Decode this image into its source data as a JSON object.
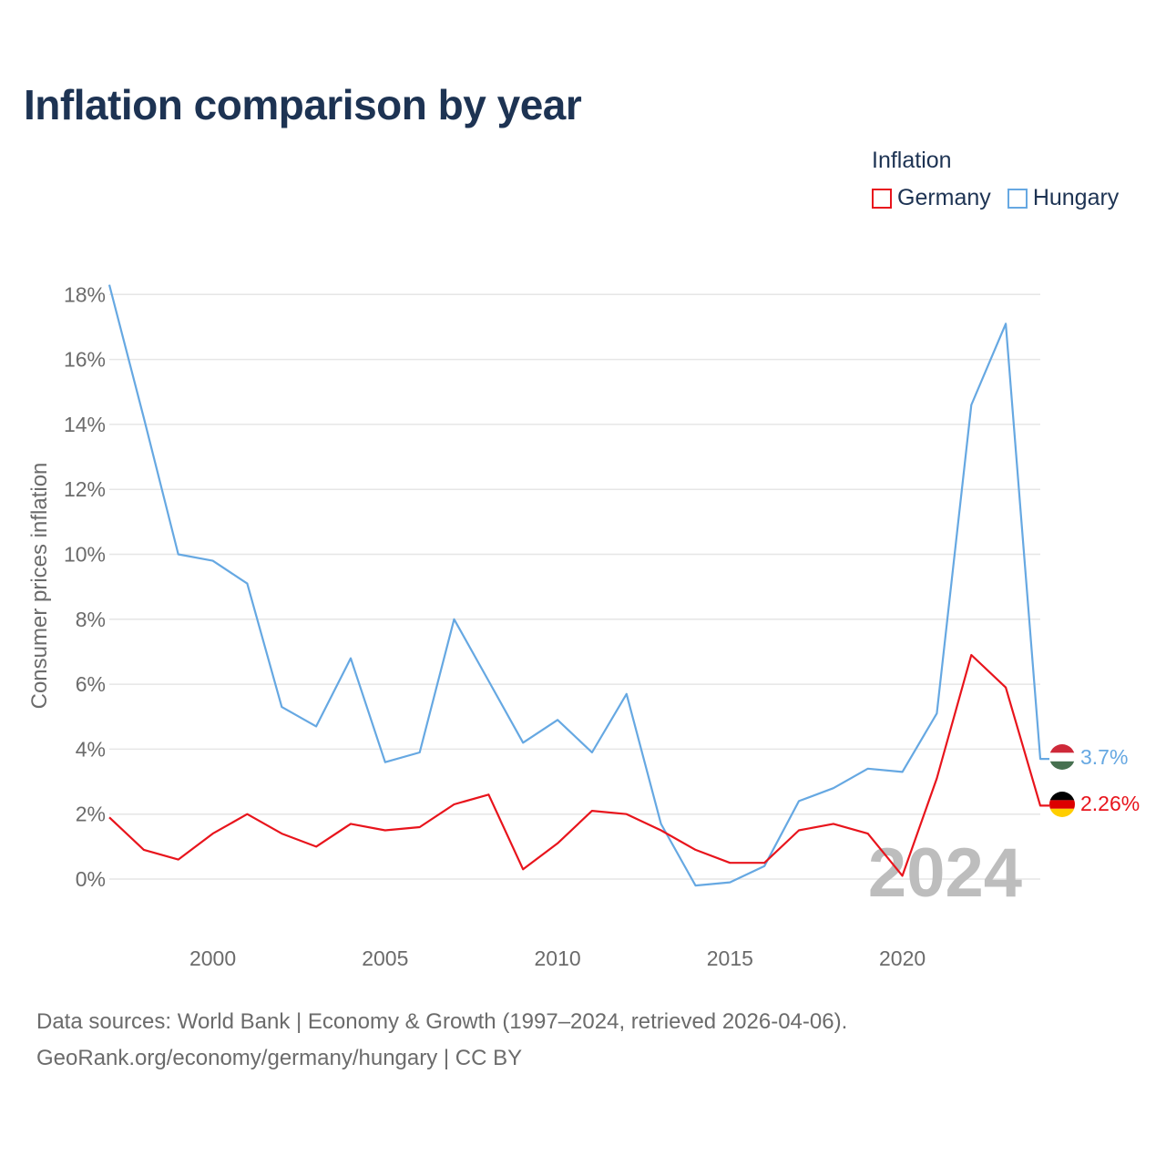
{
  "title": "Inflation comparison by year",
  "legend": {
    "title": "Inflation",
    "items": [
      {
        "name": "Germany",
        "color": "#e8141c"
      },
      {
        "name": "Hungary",
        "color": "#66a8e2"
      }
    ]
  },
  "year_label": "2024",
  "end_labels": {
    "hungary": "3.7%",
    "germany": "2.26%"
  },
  "footer": {
    "line1": "Data sources: World Bank | Economy & Growth (1997–2024, retrieved 2026-04-06).",
    "line2": "GeoRank.org/economy/germany/hungary | CC BY"
  },
  "chart_data": {
    "type": "line",
    "title": "Inflation comparison by year",
    "xlabel": "",
    "ylabel": "Consumer prices inflation",
    "x": [
      1997,
      1998,
      1999,
      2000,
      2001,
      2002,
      2003,
      2004,
      2005,
      2006,
      2007,
      2008,
      2009,
      2010,
      2011,
      2012,
      2013,
      2014,
      2015,
      2016,
      2017,
      2018,
      2019,
      2020,
      2021,
      2022,
      2023,
      2024
    ],
    "xlim": [
      1997,
      2024
    ],
    "ylim": [
      -1,
      18.3
    ],
    "xticks": [
      2000,
      2005,
      2010,
      2015,
      2020
    ],
    "yticks": [
      0,
      2,
      4,
      6,
      8,
      10,
      12,
      14,
      16,
      18
    ],
    "ytick_labels": [
      "0%",
      "2%",
      "4%",
      "6%",
      "8%",
      "10%",
      "12%",
      "14%",
      "16%",
      "18%"
    ],
    "series": [
      {
        "name": "Hungary",
        "color": "#66a8e2",
        "values": [
          18.3,
          14.2,
          10.0,
          9.8,
          9.1,
          5.3,
          4.7,
          6.8,
          3.6,
          3.9,
          8.0,
          6.1,
          4.2,
          4.9,
          3.9,
          5.7,
          1.7,
          -0.2,
          -0.1,
          0.4,
          2.4,
          2.8,
          3.4,
          3.3,
          5.1,
          14.6,
          17.1,
          3.7
        ]
      },
      {
        "name": "Germany",
        "color": "#e8141c",
        "values": [
          1.9,
          0.9,
          0.6,
          1.4,
          2.0,
          1.4,
          1.0,
          1.7,
          1.5,
          1.6,
          2.3,
          2.6,
          0.3,
          1.1,
          2.1,
          2.0,
          1.5,
          0.9,
          0.5,
          0.5,
          1.5,
          1.7,
          1.4,
          0.1,
          3.1,
          6.9,
          5.9,
          2.26
        ]
      }
    ],
    "grid": true,
    "legend_position": "top-right"
  }
}
